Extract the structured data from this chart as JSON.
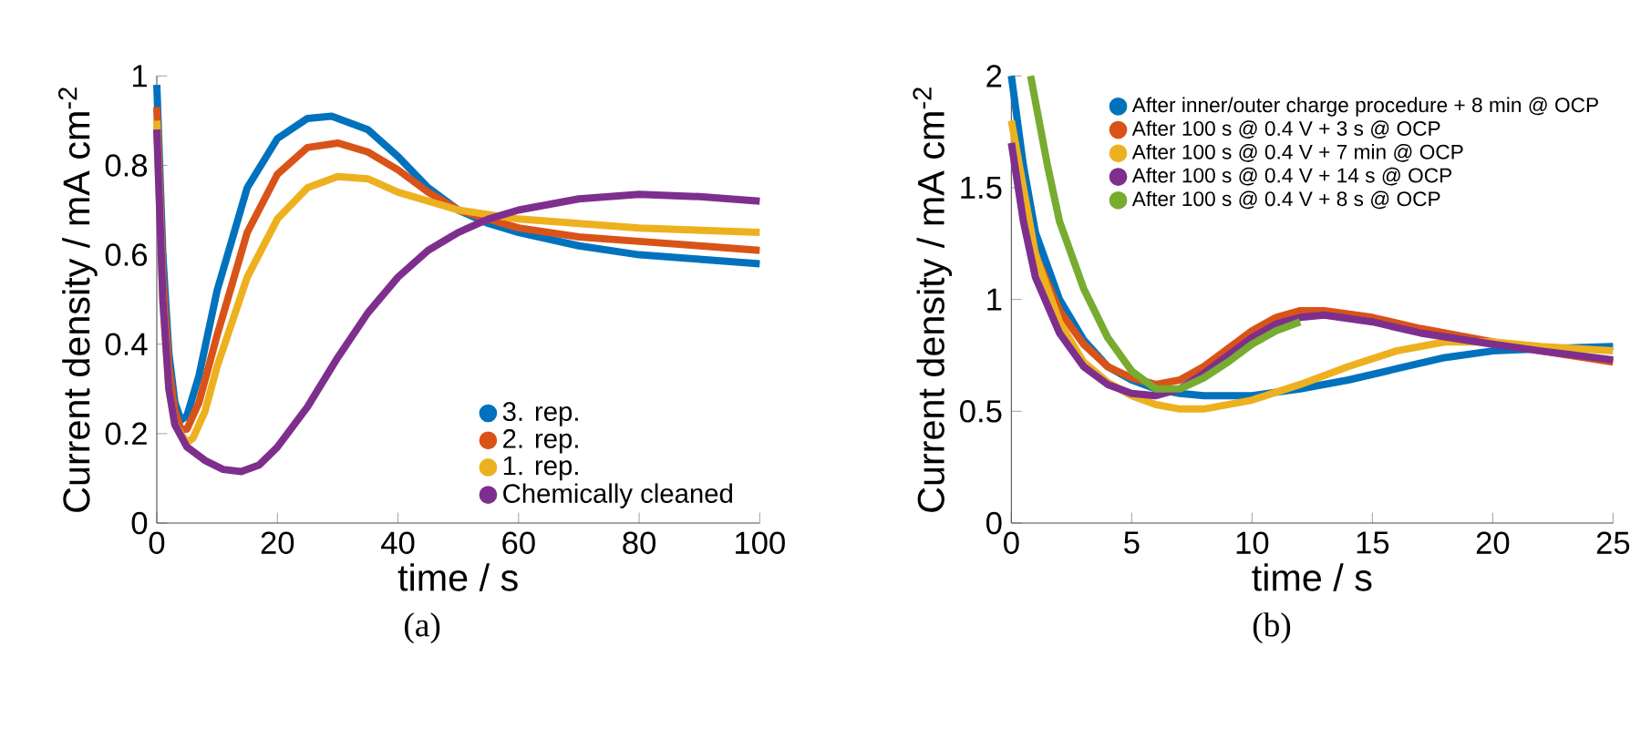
{
  "chart_data": [
    {
      "type": "line",
      "xlabel": "time / s",
      "ylabel": "Current density / mA cm$^{-2}$",
      "xlim": [
        0,
        100
      ],
      "ylim": [
        0,
        1
      ],
      "xticks": [
        0,
        20,
        40,
        60,
        80,
        100
      ],
      "yticks": [
        0,
        0.2,
        0.4,
        0.6,
        0.8,
        1
      ],
      "legend": "bottom right",
      "annotations": [
        "(a)"
      ],
      "series": [
        {
          "name": "3. rep.",
          "color": "#0072bd",
          "x": [
            0,
            1,
            2,
            3,
            4,
            5,
            7,
            10,
            15,
            20,
            25,
            29,
            35,
            40,
            45,
            50,
            55,
            60,
            70,
            80,
            90,
            100
          ],
          "values": [
            0.98,
            0.6,
            0.38,
            0.27,
            0.23,
            0.24,
            0.33,
            0.52,
            0.75,
            0.86,
            0.905,
            0.91,
            0.88,
            0.82,
            0.75,
            0.7,
            0.67,
            0.65,
            0.62,
            0.6,
            0.59,
            0.58
          ]
        },
        {
          "name": "2. rep.",
          "color": "#d95319",
          "x": [
            0,
            1,
            2,
            3,
            4,
            5,
            7,
            10,
            15,
            20,
            25,
            30,
            35,
            40,
            45,
            50,
            55,
            60,
            70,
            80,
            90,
            100
          ],
          "values": [
            0.93,
            0.55,
            0.35,
            0.25,
            0.21,
            0.21,
            0.27,
            0.42,
            0.65,
            0.78,
            0.84,
            0.85,
            0.83,
            0.79,
            0.74,
            0.7,
            0.68,
            0.66,
            0.64,
            0.63,
            0.62,
            0.61
          ]
        },
        {
          "name": "1. rep.",
          "color": "#edb120",
          "x": [
            0,
            1,
            2,
            3,
            5,
            6,
            8,
            10,
            15,
            20,
            25,
            30,
            35,
            40,
            50,
            60,
            70,
            80,
            90,
            100
          ],
          "values": [
            0.9,
            0.5,
            0.3,
            0.22,
            0.18,
            0.19,
            0.25,
            0.35,
            0.55,
            0.68,
            0.75,
            0.775,
            0.77,
            0.74,
            0.7,
            0.68,
            0.67,
            0.66,
            0.655,
            0.65
          ]
        },
        {
          "name": "Chemically cleaned",
          "color": "#7e2f8e",
          "x": [
            0,
            1,
            2,
            3,
            5,
            8,
            11,
            14,
            17,
            20,
            25,
            30,
            35,
            40,
            45,
            50,
            55,
            60,
            70,
            80,
            90,
            100
          ],
          "values": [
            0.88,
            0.5,
            0.3,
            0.22,
            0.17,
            0.14,
            0.12,
            0.115,
            0.13,
            0.17,
            0.26,
            0.37,
            0.47,
            0.55,
            0.61,
            0.65,
            0.68,
            0.7,
            0.725,
            0.735,
            0.73,
            0.72
          ]
        }
      ]
    },
    {
      "type": "line",
      "xlabel": "time / s",
      "ylabel": "Current density / mA cm$^{-2}$",
      "xlim": [
        0,
        25
      ],
      "ylim": [
        0,
        2
      ],
      "xticks": [
        0,
        5,
        10,
        15,
        20,
        25
      ],
      "yticks": [
        0,
        0.5,
        1,
        1.5,
        2
      ],
      "legend": "top right",
      "annotations": [
        "(b)"
      ],
      "series": [
        {
          "name": "After inner/outer charge procedure + 8 min @ OCP",
          "color": "#0072bd",
          "x": [
            0,
            0.5,
            1,
            2,
            3,
            4,
            5,
            6,
            7,
            8,
            10,
            12,
            14,
            16,
            18,
            20,
            22,
            25
          ],
          "values": [
            2,
            1.6,
            1.3,
            1.0,
            0.82,
            0.7,
            0.64,
            0.6,
            0.58,
            0.57,
            0.57,
            0.6,
            0.64,
            0.69,
            0.74,
            0.77,
            0.78,
            0.79
          ]
        },
        {
          "name": "After 100 s @ 0.4 V + 3 s @ OCP",
          "color": "#d95319",
          "x": [
            0.3,
            1,
            2,
            3,
            4,
            5,
            6,
            7,
            8,
            9,
            10,
            11,
            12,
            13,
            15,
            17,
            20,
            22,
            25
          ],
          "values": [
            1.6,
            1.2,
            0.95,
            0.8,
            0.7,
            0.65,
            0.62,
            0.64,
            0.7,
            0.78,
            0.86,
            0.92,
            0.95,
            0.95,
            0.92,
            0.87,
            0.81,
            0.77,
            0.72
          ]
        },
        {
          "name": "After 100 s @ 0.4 V + 7 min @ OCP",
          "color": "#edb120",
          "x": [
            0,
            1,
            2,
            3,
            4,
            5,
            6,
            7,
            8,
            10,
            12,
            14,
            16,
            18,
            20,
            22,
            25
          ],
          "values": [
            1.8,
            1.2,
            0.9,
            0.72,
            0.63,
            0.57,
            0.53,
            0.51,
            0.51,
            0.55,
            0.62,
            0.7,
            0.77,
            0.81,
            0.81,
            0.79,
            0.77
          ]
        },
        {
          "name": "After 100 s @ 0.4 V + 14 s @ OCP",
          "color": "#7e2f8e",
          "x": [
            0,
            0.5,
            1,
            2,
            3,
            4,
            5,
            6,
            7,
            8,
            9,
            10,
            11,
            12,
            13,
            15,
            17,
            20,
            22,
            25
          ],
          "values": [
            1.7,
            1.35,
            1.1,
            0.85,
            0.7,
            0.62,
            0.58,
            0.57,
            0.6,
            0.67,
            0.75,
            0.83,
            0.89,
            0.92,
            0.93,
            0.9,
            0.85,
            0.8,
            0.77,
            0.73
          ]
        },
        {
          "name": "After 100 s @ 0.4 V + 8 s @ OCP",
          "color": "#77ac30",
          "x": [
            0.8,
            1.5,
            2,
            3,
            4,
            5,
            6,
            7,
            8,
            9,
            10,
            11,
            12
          ],
          "values": [
            2.0,
            1.6,
            1.35,
            1.05,
            0.83,
            0.68,
            0.6,
            0.6,
            0.65,
            0.72,
            0.8,
            0.86,
            0.9
          ]
        }
      ]
    }
  ]
}
